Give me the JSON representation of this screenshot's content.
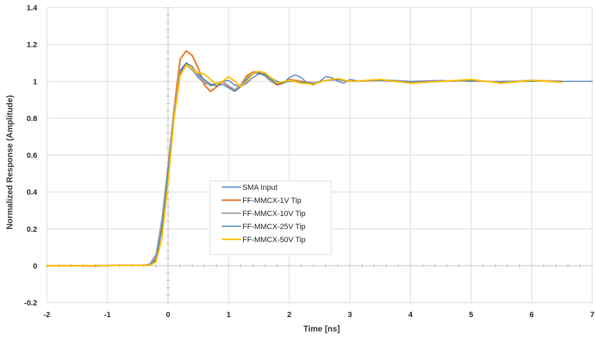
{
  "chart_data": {
    "type": "line",
    "title": "",
    "xlabel": "Time [ns]",
    "ylabel": "Normalized Response (Amplitude)",
    "xlim": [
      -2,
      7
    ],
    "ylim": [
      -0.2,
      1.4
    ],
    "x_ticks": [
      "-2",
      "-1",
      "0",
      "1",
      "2",
      "3",
      "4",
      "5",
      "6",
      "7"
    ],
    "y_ticks": [
      "-0.2",
      "0",
      "0.2",
      "0.4",
      "0.6",
      "0.8",
      "1",
      "1.2",
      "1.4"
    ],
    "grid": true,
    "legend_position": "center-left",
    "series": [
      {
        "name": "SMA Input",
        "color": "#4472c4",
        "points": [
          [
            -2,
            0
          ],
          [
            -1.5,
            0
          ],
          [
            -1.2,
            -0.003
          ],
          [
            -0.8,
            0.003
          ],
          [
            -0.4,
            0.002
          ],
          [
            -0.3,
            0.01
          ],
          [
            -0.2,
            0.06
          ],
          [
            -0.1,
            0.26
          ],
          [
            0,
            0.55
          ],
          [
            0.1,
            0.85
          ],
          [
            0.2,
            1.06
          ],
          [
            0.3,
            1.1
          ],
          [
            0.4,
            1.06
          ],
          [
            0.5,
            1.02
          ],
          [
            0.6,
            0.99
          ],
          [
            0.7,
            0.98
          ],
          [
            0.8,
            0.99
          ],
          [
            0.9,
            1.0
          ],
          [
            1.0,
            1.005
          ],
          [
            1.1,
            0.98
          ],
          [
            1.2,
            0.97
          ],
          [
            1.3,
            0.99
          ],
          [
            1.4,
            1.02
          ],
          [
            1.5,
            1.04
          ],
          [
            1.6,
            1.04
          ],
          [
            1.7,
            1.02
          ],
          [
            1.8,
            1.0
          ],
          [
            1.9,
            0.99
          ],
          [
            2.0,
            1.02
          ],
          [
            2.1,
            1.035
          ],
          [
            2.2,
            1.02
          ],
          [
            2.3,
            0.99
          ],
          [
            2.4,
            0.98
          ],
          [
            2.5,
            1.0
          ],
          [
            2.6,
            1.025
          ],
          [
            2.7,
            1.02
          ],
          [
            2.8,
            1.0
          ],
          [
            2.9,
            0.99
          ],
          [
            3.0,
            1.01
          ],
          [
            3.2,
            1.0
          ],
          [
            3.5,
            1.01
          ],
          [
            4.0,
            1.0
          ],
          [
            4.5,
            1.005
          ],
          [
            5.0,
            1.0
          ],
          [
            5.5,
            1.0
          ],
          [
            6.0,
            1.005
          ],
          [
            6.5,
            1.0
          ],
          [
            7.0,
            1.0
          ]
        ]
      },
      {
        "name": "FF-MMCX-1V Tip",
        "color": "#ed7d31",
        "points": [
          [
            -2,
            0
          ],
          [
            -1.5,
            0
          ],
          [
            -1.2,
            0
          ],
          [
            -0.8,
            0.002
          ],
          [
            -0.4,
            0.002
          ],
          [
            -0.3,
            0.005
          ],
          [
            -0.2,
            0.04
          ],
          [
            -0.1,
            0.22
          ],
          [
            0,
            0.52
          ],
          [
            0.1,
            0.85
          ],
          [
            0.2,
            1.12
          ],
          [
            0.3,
            1.165
          ],
          [
            0.4,
            1.14
          ],
          [
            0.5,
            1.07
          ],
          [
            0.6,
            0.98
          ],
          [
            0.7,
            0.945
          ],
          [
            0.8,
            0.97
          ],
          [
            0.9,
            1.0
          ],
          [
            1.0,
            0.97
          ],
          [
            1.1,
            0.95
          ],
          [
            1.2,
            0.98
          ],
          [
            1.3,
            1.03
          ],
          [
            1.4,
            1.05
          ],
          [
            1.5,
            1.05
          ],
          [
            1.6,
            1.03
          ],
          [
            1.7,
            1.0
          ],
          [
            1.8,
            0.98
          ],
          [
            1.9,
            0.99
          ],
          [
            2.0,
            1.01
          ],
          [
            2.2,
            1.0
          ],
          [
            2.4,
            0.99
          ],
          [
            2.6,
            1.005
          ],
          [
            2.8,
            1.01
          ],
          [
            3.0,
            1.0
          ],
          [
            3.5,
            1.005
          ],
          [
            4.0,
            0.995
          ],
          [
            4.5,
            1.0
          ],
          [
            5.0,
            1.005
          ],
          [
            5.5,
            0.995
          ],
          [
            6.0,
            1.005
          ],
          [
            6.5,
            1.0
          ]
        ]
      },
      {
        "name": "FF-MMCX-10V Tip",
        "color": "#a5a5a5",
        "points": [
          [
            -2,
            0
          ],
          [
            -1.5,
            0
          ],
          [
            -1.2,
            0
          ],
          [
            -0.8,
            0.002
          ],
          [
            -0.4,
            0.002
          ],
          [
            -0.3,
            0.005
          ],
          [
            -0.2,
            0.05
          ],
          [
            -0.1,
            0.24
          ],
          [
            0,
            0.53
          ],
          [
            0.1,
            0.84
          ],
          [
            0.2,
            1.05
          ],
          [
            0.3,
            1.09
          ],
          [
            0.4,
            1.06
          ],
          [
            0.5,
            1.03
          ],
          [
            0.6,
            1.0
          ],
          [
            0.7,
            0.975
          ],
          [
            0.8,
            0.985
          ],
          [
            0.9,
            1.0
          ],
          [
            1.0,
            0.975
          ],
          [
            1.1,
            0.955
          ],
          [
            1.2,
            0.98
          ],
          [
            1.3,
            1.02
          ],
          [
            1.4,
            1.045
          ],
          [
            1.5,
            1.045
          ],
          [
            1.6,
            1.03
          ],
          [
            1.7,
            1.0
          ],
          [
            1.8,
            0.985
          ],
          [
            2.0,
            1.005
          ],
          [
            2.2,
            0.995
          ],
          [
            2.4,
            0.99
          ],
          [
            2.6,
            1.005
          ],
          [
            2.8,
            1.01
          ],
          [
            3.0,
            1.0
          ],
          [
            3.5,
            1.005
          ],
          [
            4.0,
            0.995
          ],
          [
            4.5,
            1.0
          ],
          [
            5.0,
            1.005
          ],
          [
            5.5,
            0.995
          ],
          [
            6.0,
            1.005
          ],
          [
            6.5,
            1.0
          ]
        ]
      },
      {
        "name": "FF-MMCX-25V Tip",
        "color": "#2e75b6",
        "points": [
          [
            -2,
            0
          ],
          [
            -1.5,
            0
          ],
          [
            -1.2,
            0
          ],
          [
            -0.8,
            0.002
          ],
          [
            -0.4,
            0.002
          ],
          [
            -0.3,
            0.005
          ],
          [
            -0.2,
            0.03
          ],
          [
            -0.1,
            0.2
          ],
          [
            0,
            0.5
          ],
          [
            0.1,
            0.82
          ],
          [
            0.2,
            1.04
          ],
          [
            0.3,
            1.1
          ],
          [
            0.4,
            1.08
          ],
          [
            0.5,
            1.04
          ],
          [
            0.6,
            1.01
          ],
          [
            0.7,
            0.985
          ],
          [
            0.8,
            0.975
          ],
          [
            0.9,
            0.985
          ],
          [
            1.0,
            0.965
          ],
          [
            1.1,
            0.945
          ],
          [
            1.2,
            0.97
          ],
          [
            1.3,
            1.01
          ],
          [
            1.4,
            1.04
          ],
          [
            1.5,
            1.045
          ],
          [
            1.6,
            1.035
          ],
          [
            1.7,
            1.01
          ],
          [
            1.8,
            0.985
          ],
          [
            2.0,
            1.0
          ],
          [
            2.2,
            0.995
          ],
          [
            2.4,
            0.99
          ],
          [
            2.6,
            1.005
          ],
          [
            2.8,
            1.01
          ],
          [
            3.0,
            1.0
          ],
          [
            3.5,
            1.005
          ],
          [
            4.0,
            0.995
          ],
          [
            4.5,
            1.0
          ],
          [
            5.0,
            1.005
          ],
          [
            5.5,
            0.995
          ],
          [
            6.0,
            1.0
          ],
          [
            6.5,
            1.0
          ]
        ]
      },
      {
        "name": "FF-MMCX-50V Tip",
        "color": "#ffc000",
        "points": [
          [
            -2,
            0
          ],
          [
            -1.5,
            0
          ],
          [
            -1.2,
            0
          ],
          [
            -0.8,
            0.002
          ],
          [
            -0.4,
            0.002
          ],
          [
            -0.3,
            0.003
          ],
          [
            -0.2,
            0.02
          ],
          [
            -0.1,
            0.15
          ],
          [
            0,
            0.45
          ],
          [
            0.1,
            0.8
          ],
          [
            0.2,
            1.03
          ],
          [
            0.3,
            1.09
          ],
          [
            0.4,
            1.07
          ],
          [
            0.5,
            1.045
          ],
          [
            0.6,
            1.04
          ],
          [
            0.7,
            1.01
          ],
          [
            0.8,
            0.985
          ],
          [
            0.9,
            1.0
          ],
          [
            1.0,
            1.025
          ],
          [
            1.1,
            1.0
          ],
          [
            1.2,
            0.97
          ],
          [
            1.3,
            1.0
          ],
          [
            1.4,
            1.04
          ],
          [
            1.5,
            1.055
          ],
          [
            1.6,
            1.045
          ],
          [
            1.7,
            1.02
          ],
          [
            1.8,
            0.99
          ],
          [
            2.0,
            1.005
          ],
          [
            2.2,
            0.99
          ],
          [
            2.4,
            0.985
          ],
          [
            2.6,
            1.005
          ],
          [
            2.8,
            1.015
          ],
          [
            3.0,
            1.0
          ],
          [
            3.5,
            1.01
          ],
          [
            4.0,
            0.99
          ],
          [
            4.5,
            1.0
          ],
          [
            5.0,
            1.01
          ],
          [
            5.5,
            0.99
          ],
          [
            6.0,
            1.005
          ],
          [
            6.5,
            0.995
          ]
        ]
      }
    ]
  }
}
